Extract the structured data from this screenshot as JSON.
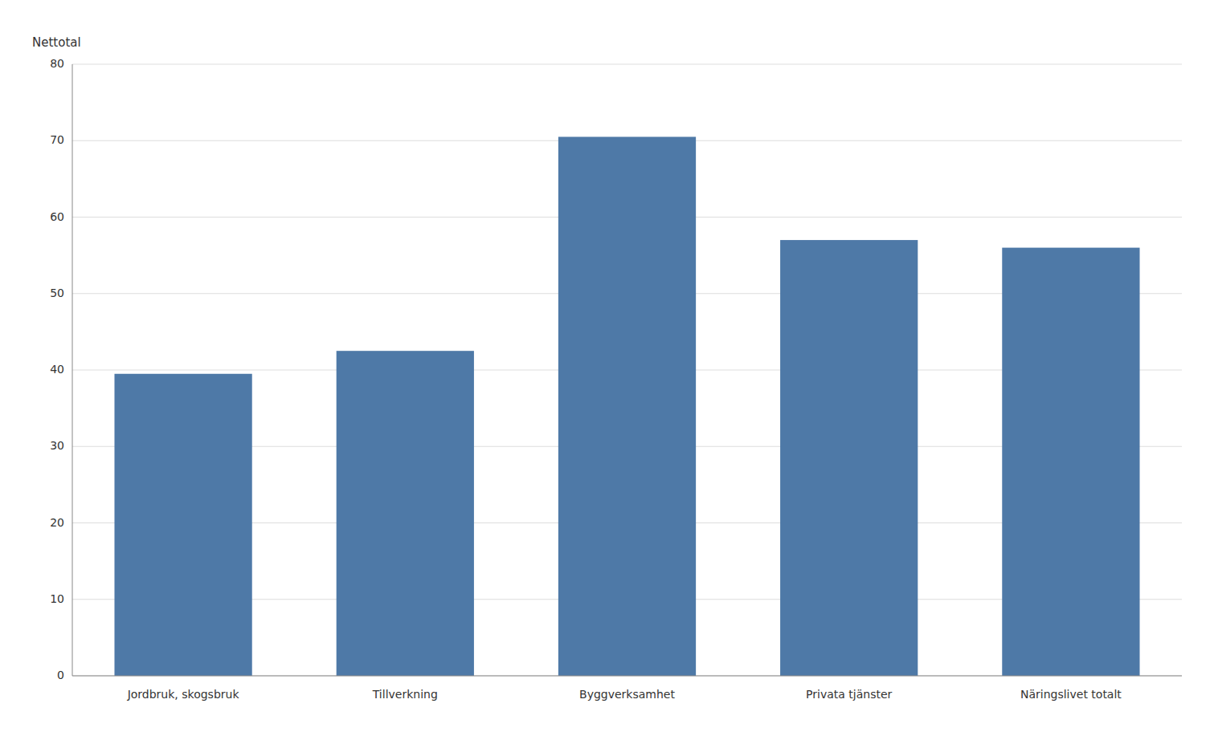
{
  "chart_data": {
    "type": "bar",
    "ylabel": "Nettotal",
    "categories": [
      "Jordbruk, skogsbruk",
      "Tillverkning",
      "Byggverksamhet",
      "Privata tjänster",
      "Näringslivet totalt"
    ],
    "values": [
      39.5,
      42.5,
      70.5,
      57.0,
      56.0
    ],
    "ylim": [
      0,
      80
    ],
    "yticks": [
      0,
      10,
      20,
      30,
      40,
      50,
      60,
      70,
      80
    ],
    "grid": true
  }
}
